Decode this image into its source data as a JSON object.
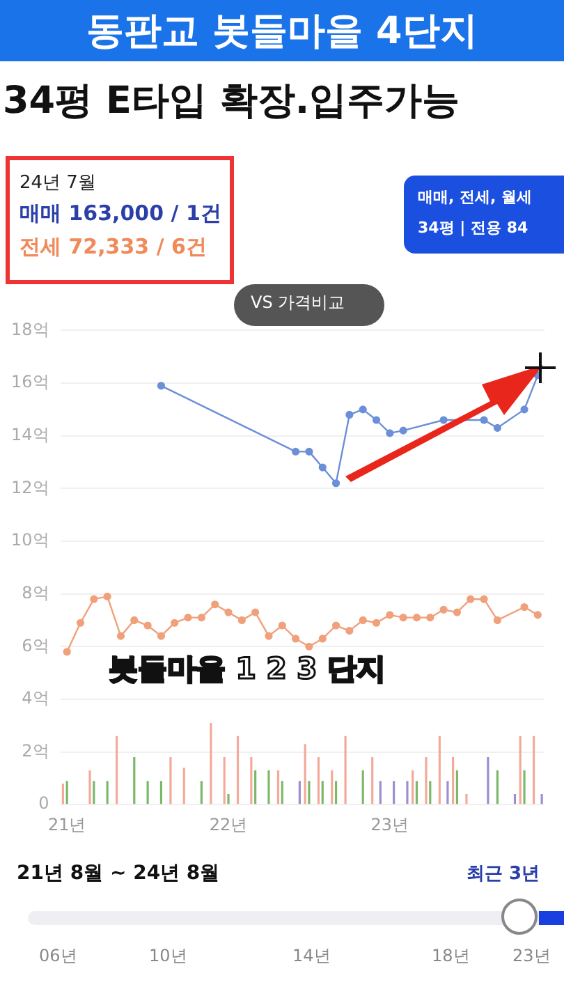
{
  "chart_data": {
    "type": "line",
    "title": "동판교 봇들마을 4단지",
    "subtitle": "34평 E타입 확장.입주가능",
    "annotations": [
      "24년 7월",
      "매매 163,000 / 1건",
      "전세 72,333 / 6건",
      "매매, 전세, 월세",
      "34평 | 전용 84",
      "VS 가격비교",
      "봇들마을 1 2 3 단지",
      "21년 8월 ~ 24년 8월",
      "최근 3년",
      "06년",
      "10년",
      "14년",
      "18년",
      "23년"
    ],
    "categories": [
      "21년",
      null,
      null,
      null,
      null,
      null,
      null,
      null,
      null,
      null,
      null,
      null,
      "22년",
      null,
      null,
      null,
      null,
      null,
      null,
      null,
      null,
      null,
      null,
      null,
      "23년",
      null,
      null,
      null,
      null,
      null,
      null,
      null,
      null,
      null,
      null,
      null
    ],
    "series": [
      {
        "type": "bar",
        "color": "#f4a99a",
        "values": [
          0.8,
          null,
          1.3,
          null,
          2.6,
          null,
          null,
          null,
          1.8,
          1.4,
          null,
          3.1,
          1.8,
          2.6,
          1.8,
          null,
          1.3,
          null,
          2.3,
          1.8,
          1.3,
          2.6,
          null,
          1.8,
          null,
          null,
          1.3,
          1.8,
          2.6,
          1.8,
          0.4,
          null,
          null,
          null,
          2.6,
          2.6
        ]
      },
      {
        "type": "bar",
        "color": "#7cb86a",
        "values": [
          0.9,
          null,
          0.9,
          0.9,
          null,
          1.8,
          0.9,
          0.9,
          null,
          null,
          0.9,
          null,
          0.4,
          null,
          1.3,
          1.3,
          0.9,
          null,
          0.9,
          0.9,
          0.9,
          null,
          1.3,
          null,
          null,
          null,
          0.9,
          0.9,
          null,
          1.3,
          null,
          null,
          1.3,
          null,
          1.3,
          null
        ]
      },
      {
        "type": "bar",
        "color": "#9a8fd0",
        "values": [
          null,
          null,
          null,
          null,
          null,
          null,
          null,
          null,
          null,
          null,
          null,
          null,
          null,
          null,
          null,
          null,
          null,
          0.9,
          null,
          null,
          null,
          null,
          null,
          0.9,
          0.9,
          0.9,
          null,
          null,
          0.9,
          null,
          null,
          1.8,
          null,
          0.4,
          null,
          0.4
        ]
      },
      {
        "color": "#f0a07a",
        "values": [
          5.8,
          6.9,
          7.8,
          7.9,
          6.4,
          7.0,
          6.8,
          6.4,
          6.9,
          7.1,
          7.1,
          7.6,
          7.3,
          7.0,
          7.3,
          6.4,
          6.8,
          6.3,
          6.0,
          6.3,
          6.8,
          6.6,
          7.0,
          6.9,
          7.2,
          7.1,
          7.1,
          7.1,
          7.4,
          7.3,
          7.8,
          7.8,
          7.0,
          null,
          7.5,
          7.2
        ]
      },
      {
        "color": "#6b8fd8",
        "values": [
          null,
          null,
          null,
          null,
          null,
          null,
          null,
          15.9,
          null,
          null,
          null,
          null,
          null,
          null,
          null,
          null,
          null,
          13.4,
          13.4,
          12.8,
          12.2,
          14.8,
          15.0,
          14.6,
          14.1,
          14.2,
          null,
          null,
          14.6,
          null,
          null,
          14.6,
          14.3,
          null,
          15.0,
          16.3
        ]
      }
    ],
    "ylim": [
      0,
      18
    ],
    "yticks": [
      0,
      {
        "value": 2,
        "label": "2억"
      },
      {
        "value": 4,
        "label": "4억"
      },
      {
        "value": 6,
        "label": "6억"
      },
      {
        "value": 8,
        "label": "8억"
      },
      {
        "value": 10,
        "label": "10억"
      },
      {
        "value": 12,
        "label": "12억"
      },
      {
        "value": 14,
        "label": "14억"
      },
      {
        "value": 16,
        "label": "16억"
      },
      {
        "value": 18,
        "label": "18억"
      }
    ],
    "grid": "y",
    "marker": "circle",
    "line_style": "solid"
  }
}
